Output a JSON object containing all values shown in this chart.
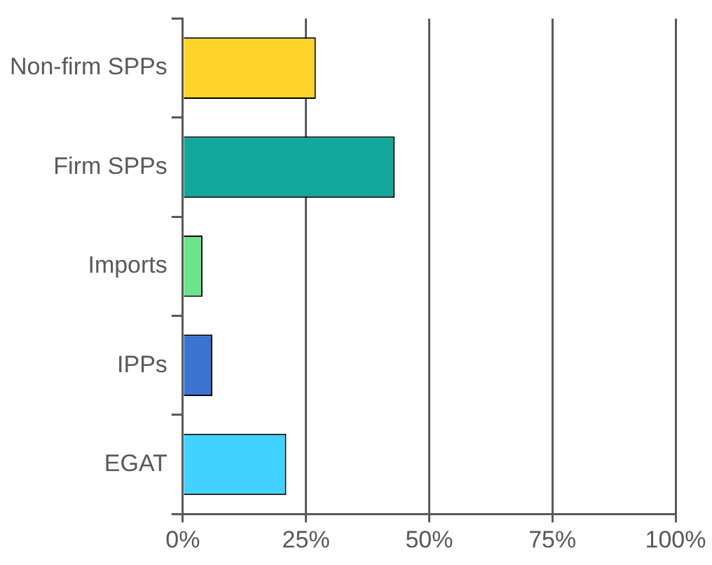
{
  "chart_data": {
    "type": "bar",
    "orientation": "horizontal",
    "categories": [
      "Non-firm SPPs",
      "Firm SPPs",
      "Imports",
      "IPPs",
      "EGAT"
    ],
    "values": [
      27,
      43,
      4,
      6,
      21
    ],
    "colors": [
      "#ffd42a",
      "#13a89b",
      "#6ae58c",
      "#3b73d1",
      "#42d2ff"
    ],
    "xlim": [
      0,
      100
    ],
    "xticks": [
      {
        "value": 0,
        "label": "0%"
      },
      {
        "value": 25,
        "label": "25%"
      },
      {
        "value": 50,
        "label": "50%"
      },
      {
        "value": 75,
        "label": "75%"
      },
      {
        "value": 100,
        "label": "100%"
      }
    ],
    "grid": "x",
    "legend": false
  }
}
